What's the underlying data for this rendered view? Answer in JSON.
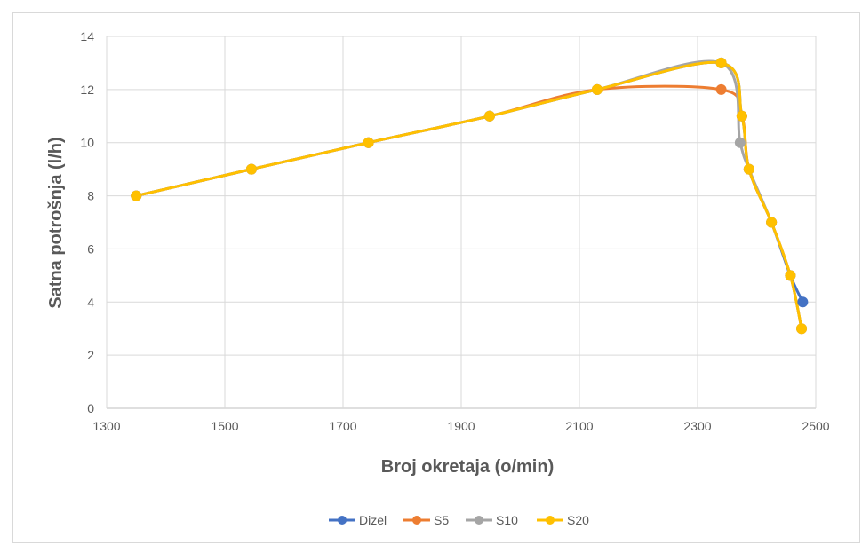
{
  "chart_data": {
    "type": "line",
    "xlabel": "Broj okretaja (o/min)",
    "ylabel": "Satna potrošnja (l/h)",
    "xlim": [
      1300,
      2500
    ],
    "ylim": [
      0,
      14
    ],
    "xticks": [
      1300,
      1500,
      1700,
      1900,
      2100,
      2300,
      2500
    ],
    "yticks": [
      0,
      2,
      4,
      6,
      8,
      10,
      12,
      14
    ],
    "grid": true,
    "legend_position": "bottom",
    "smoothed": true,
    "series": [
      {
        "name": "Dizel",
        "color": "#4472C4",
        "points": [
          [
            1350,
            8
          ],
          [
            1545,
            9
          ],
          [
            1743,
            10
          ],
          [
            1948,
            11
          ],
          [
            2130,
            12
          ],
          [
            2340,
            13
          ],
          [
            2375,
            11
          ],
          [
            2387,
            9
          ],
          [
            2425,
            7
          ],
          [
            2457,
            5
          ],
          [
            2478,
            4
          ]
        ]
      },
      {
        "name": "S5",
        "color": "#ED7D31",
        "points": [
          [
            1350,
            8
          ],
          [
            1545,
            9
          ],
          [
            1743,
            10
          ],
          [
            1948,
            11
          ],
          [
            2130,
            12
          ],
          [
            2340,
            12
          ],
          [
            2375,
            11
          ],
          [
            2387,
            9
          ],
          [
            2425,
            7
          ],
          [
            2457,
            5
          ],
          [
            2476,
            3
          ]
        ]
      },
      {
        "name": "S10",
        "color": "#A5A5A5",
        "points": [
          [
            1350,
            8
          ],
          [
            1545,
            9
          ],
          [
            1743,
            10
          ],
          [
            1948,
            11
          ],
          [
            2130,
            12
          ],
          [
            2340,
            13
          ],
          [
            2372,
            10
          ],
          [
            2387,
            9
          ],
          [
            2425,
            7
          ],
          [
            2457,
            5
          ],
          [
            2476,
            3
          ]
        ]
      },
      {
        "name": "S20",
        "color": "#FFC000",
        "points": [
          [
            1350,
            8
          ],
          [
            1545,
            9
          ],
          [
            1743,
            10
          ],
          [
            1948,
            11
          ],
          [
            2130,
            12
          ],
          [
            2340,
            13
          ],
          [
            2375,
            11
          ],
          [
            2387,
            9
          ],
          [
            2425,
            7
          ],
          [
            2457,
            5
          ],
          [
            2476,
            3
          ]
        ]
      }
    ]
  }
}
